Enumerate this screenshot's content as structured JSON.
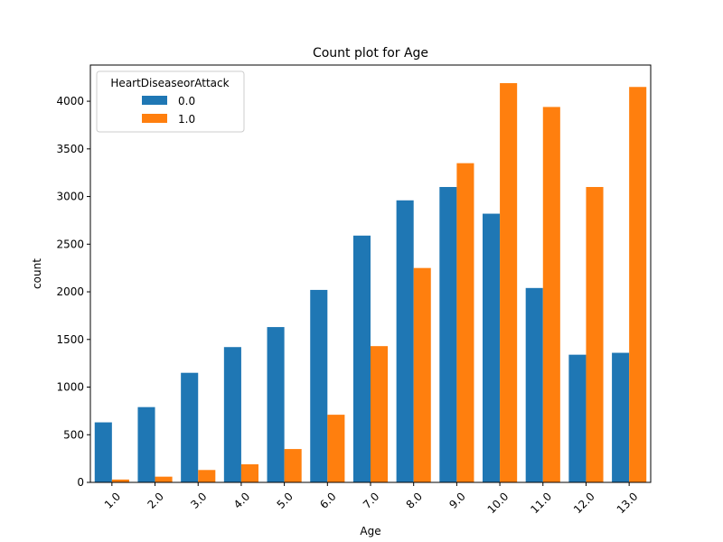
{
  "chart_data": {
    "type": "bar",
    "title": "Count plot for Age",
    "xlabel": "Age",
    "ylabel": "count",
    "categories": [
      "1.0",
      "2.0",
      "3.0",
      "4.0",
      "5.0",
      "6.0",
      "7.0",
      "8.0",
      "9.0",
      "10.0",
      "11.0",
      "12.0",
      "13.0"
    ],
    "series": [
      {
        "name": "0.0",
        "color": "#1f77b4",
        "values": [
          630,
          790,
          1150,
          1420,
          1630,
          2020,
          2590,
          2960,
          3100,
          2820,
          2040,
          1340,
          1360
        ]
      },
      {
        "name": "1.0",
        "color": "#ff7f0e",
        "values": [
          30,
          60,
          130,
          190,
          350,
          710,
          1430,
          2250,
          3350,
          4190,
          3940,
          3100,
          4150
        ]
      }
    ],
    "ylim": [
      0,
      4380
    ],
    "yticks": [
      0,
      500,
      1000,
      1500,
      2000,
      2500,
      3000,
      3500,
      4000
    ],
    "legend": {
      "title": "HeartDiseaseorAttack",
      "placement": "top-left"
    },
    "grid": false
  }
}
